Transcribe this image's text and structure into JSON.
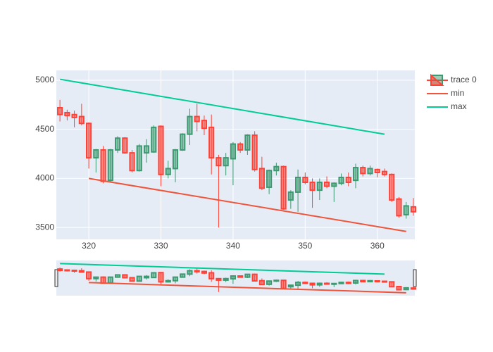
{
  "chart_data": {
    "type": "candlestick",
    "xlim": [
      315.5,
      365.2
    ],
    "ylim": [
      3379,
      5100
    ],
    "xticks": [
      320,
      330,
      340,
      350,
      360
    ],
    "yticks": [
      3500,
      4000,
      4500,
      5000
    ],
    "grid": true,
    "legend": "top-right",
    "rangeslider": true,
    "series": [
      {
        "name": "trace 0",
        "type": "candlestick",
        "increasing_color": "#3d9970",
        "decreasing_color": "#ff4136",
        "x": [
          316,
          317,
          318,
          319,
          320,
          321,
          322,
          323,
          324,
          325,
          326,
          327,
          328,
          329,
          330,
          331,
          332,
          333,
          334,
          335,
          336,
          337,
          338,
          339,
          340,
          341,
          342,
          343,
          344,
          345,
          346,
          347,
          348,
          349,
          350,
          351,
          352,
          353,
          354,
          355,
          356,
          357,
          358,
          359,
          360,
          361,
          362,
          363,
          364,
          365
        ],
        "open": [
          4720,
          4670,
          4650,
          4630,
          4560,
          4210,
          4290,
          3980,
          4290,
          4410,
          4260,
          4080,
          4260,
          4270,
          4530,
          4040,
          4100,
          4290,
          4450,
          4630,
          4590,
          4520,
          4210,
          4130,
          4200,
          4350,
          4290,
          4440,
          4100,
          3910,
          4080,
          4120,
          3780,
          3860,
          4010,
          3960,
          3880,
          3960,
          3920,
          3950,
          4010,
          3980,
          4110,
          4050,
          4090,
          4070,
          4040,
          3790,
          3630,
          3710
        ],
        "high": [
          4800,
          4700,
          4690,
          4760,
          4570,
          4300,
          4330,
          4300,
          4430,
          4420,
          4290,
          4350,
          4400,
          4540,
          4540,
          4180,
          4300,
          4460,
          4710,
          4760,
          4640,
          4650,
          4240,
          4260,
          4370,
          4370,
          4450,
          4480,
          4220,
          4090,
          4160,
          4130,
          3880,
          4090,
          4060,
          4000,
          4000,
          4020,
          3960,
          4050,
          4060,
          4150,
          4130,
          4130,
          4100,
          4100,
          4050,
          3810,
          3760,
          3800
        ],
        "low": [
          4580,
          4590,
          4520,
          4540,
          4100,
          4060,
          3950,
          3970,
          4260,
          4250,
          4060,
          4070,
          4160,
          4260,
          3920,
          4000,
          3960,
          4280,
          4340,
          4480,
          4440,
          4040,
          3500,
          4030,
          3930,
          4260,
          4240,
          4070,
          3880,
          3840,
          4030,
          3680,
          3690,
          3660,
          3940,
          3700,
          3780,
          3900,
          3760,
          3930,
          3920,
          3900,
          4020,
          4030,
          4010,
          4020,
          3760,
          3600,
          3590,
          3620
        ],
        "close": [
          4650,
          4640,
          4620,
          4560,
          4210,
          4290,
          3970,
          4290,
          4410,
          4260,
          4080,
          4330,
          4330,
          4520,
          4040,
          4100,
          4290,
          4450,
          4630,
          4580,
          4510,
          4210,
          4130,
          4210,
          4350,
          4290,
          4440,
          4090,
          3900,
          4080,
          4120,
          3690,
          3860,
          4010,
          3960,
          3880,
          3960,
          3920,
          3950,
          4010,
          3960,
          4110,
          4050,
          4100,
          4060,
          4040,
          3780,
          3620,
          3720,
          3660
        ]
      },
      {
        "name": "min",
        "type": "line",
        "color": "#ef553b",
        "x": [
          320,
          364
        ],
        "values": [
          4000,
          3460
        ]
      },
      {
        "name": "max",
        "type": "line",
        "color": "#00cc96",
        "x": [
          316,
          361
        ],
        "values": [
          5010,
          4450
        ]
      }
    ]
  }
}
